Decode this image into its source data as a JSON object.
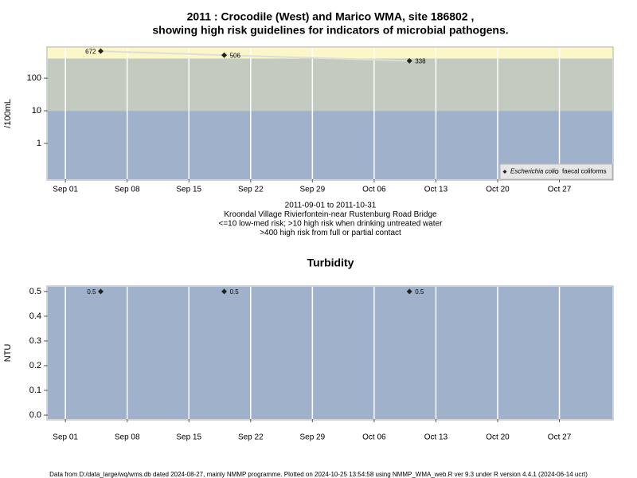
{
  "chart_data": [
    {
      "type": "scatter",
      "title": [
        "2011 : Crocodile (West) and Marico WMA, site 186802 ,",
        "showing high risk guidelines for indicators of microbial pathogens."
      ],
      "y_label": "/100mL",
      "log_scale": true,
      "notes": [
        "2011-09-01 to 2011-10-31",
        "Kroondal Village Rivierfontein-near Rustenburg Road Bridge",
        "<=10 low-med risk; >10 high risk when drinking untreated water",
        ">400 high risk from full or partial contact"
      ],
      "thresholds": [
        10,
        400
      ],
      "band_colors": [
        "#a0b2cb",
        "#c3cbc0",
        "#fbf7c9"
      ],
      "x": [
        "2011-09-05",
        "2011-09-19",
        "2011-10-10"
      ],
      "series": [
        {
          "name": "Escherichia coli",
          "color": "#222222",
          "line_color": "#dddddd",
          "marker": "diamond",
          "values": [
            672,
            506,
            338
          ]
        },
        {
          "name": "faecal coliforms",
          "color": "#222222",
          "marker": "circle",
          "values": [
            null,
            null,
            null
          ]
        }
      ],
      "xlim": [
        "2011-08-30",
        "2011-11-02"
      ],
      "xticks": [
        {
          "value": "2011-09-01",
          "label": "Sep 01"
        },
        {
          "value": "2011-09-08",
          "label": "Sep 08"
        },
        {
          "value": "2011-09-15",
          "label": "Sep 15"
        },
        {
          "value": "2011-09-22",
          "label": "Sep 22"
        },
        {
          "value": "2011-09-29",
          "label": "Sep 29"
        },
        {
          "value": "2011-10-06",
          "label": "Oct 06"
        },
        {
          "value": "2011-10-13",
          "label": "Oct 13"
        },
        {
          "value": "2011-10-20",
          "label": "Oct 20"
        },
        {
          "value": "2011-10-27",
          "label": "Oct 27"
        }
      ],
      "ylim": [
        0.08,
        850
      ],
      "yticks": [
        1,
        10,
        100
      ],
      "grid": true,
      "legend": "bottom-right"
    },
    {
      "type": "scatter",
      "title": [
        "Turbidity"
      ],
      "y_label": "NTU",
      "log_scale": false,
      "band_colors": [
        "#a0b2cb"
      ],
      "x": [
        "2011-09-05",
        "2011-09-19",
        "2011-10-10"
      ],
      "series": [
        {
          "name": "Turbidity",
          "color": "#222222",
          "marker": "diamond",
          "values": [
            0.5,
            0.5,
            0.5
          ]
        }
      ],
      "xlim": [
        "2011-08-30",
        "2011-11-02"
      ],
      "xticks": [
        {
          "value": "2011-09-01",
          "label": "Sep 01"
        },
        {
          "value": "2011-09-08",
          "label": "Sep 08"
        },
        {
          "value": "2011-09-15",
          "label": "Sep 15"
        },
        {
          "value": "2011-09-22",
          "label": "Sep 22"
        },
        {
          "value": "2011-09-29",
          "label": "Sep 29"
        },
        {
          "value": "2011-10-06",
          "label": "Oct 06"
        },
        {
          "value": "2011-10-13",
          "label": "Oct 13"
        },
        {
          "value": "2011-10-20",
          "label": "Oct 20"
        },
        {
          "value": "2011-10-27",
          "label": "Oct 27"
        }
      ],
      "ylim": [
        -0.016,
        0.519
      ],
      "yticks": [
        {
          "value": 0,
          "label": "0.0"
        },
        0.1,
        0.2,
        0.3,
        0.4,
        0.5
      ],
      "grid": true
    }
  ],
  "footer": "Data from D:/data_large/wq/wms.db dated 2024-08-27, mainly NMMP programme. Plotted on 2024-10-25 13:54:58 using NMMP_WMA_web.R ver 9.3 under R version 4.4.1 (2024-06-14 ucrt)"
}
